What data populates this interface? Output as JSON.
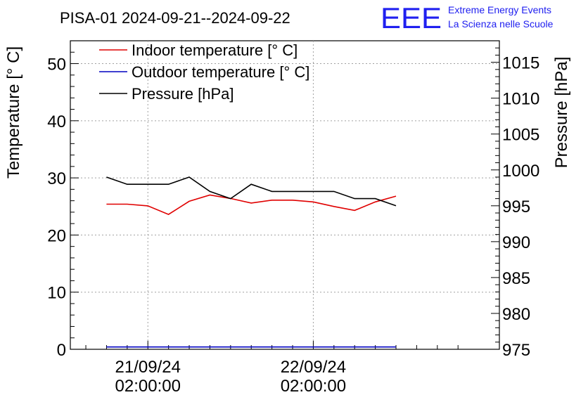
{
  "header": {
    "title": "PISA-01 2024-09-21--2024-09-22",
    "logo": "EEE",
    "logo_line1": "Extreme Energy Events",
    "logo_line2": "La Scienza nelle Scuole"
  },
  "colors": {
    "indoor": "#e00000",
    "outdoor": "#0000c0",
    "pressure": "#000000",
    "logo": "#2020f0",
    "grid": "#a0a0a0"
  },
  "chart_data": {
    "type": "line",
    "title": "PISA-01 2024-09-21--2024-09-22",
    "xlabel": "",
    "ylabel": "Temperature [° C]",
    "y2label": "Pressure [hPa]",
    "x_unit": "hours since 2024-09-20 00:00",
    "xlim": [
      14.75,
      77.0
    ],
    "ylim": [
      0,
      54
    ],
    "y2lim": [
      975,
      1018
    ],
    "y_ticks": [
      0,
      10,
      20,
      30,
      40,
      50
    ],
    "y2_ticks": [
      975,
      980,
      985,
      990,
      995,
      1000,
      1005,
      1010,
      1015
    ],
    "x_ticks": [
      {
        "x": 26,
        "line1": "21/09/24",
        "line2": "02:00:00"
      },
      {
        "x": 50,
        "line1": "22/09/24",
        "line2": "02:00:00"
      }
    ],
    "grid": true,
    "legend_position": "top-left",
    "series": [
      {
        "name": "Indoor temperature [° C]",
        "axis": "left",
        "color_key": "indoor",
        "x": [
          20,
          23,
          26,
          29,
          32,
          35,
          38,
          41,
          44,
          47,
          50,
          53,
          56,
          59,
          62
        ],
        "values": [
          25.4,
          25.4,
          25.1,
          23.6,
          25.9,
          27.0,
          26.4,
          25.6,
          26.1,
          26.1,
          25.8,
          25.0,
          24.3,
          25.8,
          26.8
        ]
      },
      {
        "name": "Outdoor temperature [° C]",
        "axis": "left",
        "color_key": "outdoor",
        "x": [
          20,
          62
        ],
        "values": [
          0.4,
          0.4
        ]
      },
      {
        "name": "Pressure [hPa]",
        "axis": "right",
        "color_key": "pressure",
        "x": [
          20,
          23,
          26,
          29,
          32,
          35,
          38,
          41,
          44,
          47,
          50,
          53,
          56,
          59,
          62
        ],
        "values": [
          999.0,
          998.0,
          998.0,
          998.0,
          999.0,
          997.0,
          996.0,
          998.0,
          997.0,
          997.0,
          997.0,
          997.0,
          996.0,
          996.0,
          995.0
        ]
      }
    ]
  }
}
